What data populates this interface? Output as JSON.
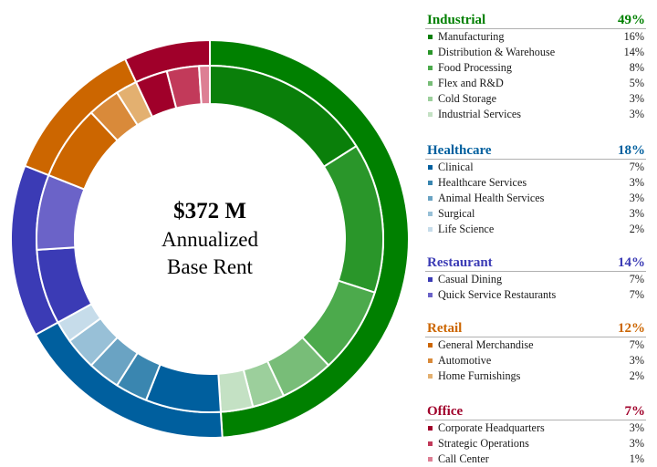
{
  "chart_data": {
    "type": "donut",
    "center": {
      "amount": "$372 M",
      "line1": "Annualized",
      "line2": "Base Rent"
    },
    "groups": [
      {
        "name": "Industrial",
        "pct_label": "49%",
        "value": 49,
        "color": "#008000",
        "items": [
          {
            "name": "Manufacturing",
            "pct_label": "16%",
            "value": 16,
            "color": "#0a7f0a"
          },
          {
            "name": "Distribution & Warehouse",
            "pct_label": "14%",
            "value": 14,
            "color": "#2a962a"
          },
          {
            "name": "Food Processing",
            "pct_label": "8%",
            "value": 8,
            "color": "#4caa4c"
          },
          {
            "name": "Flex and R&D",
            "pct_label": "5%",
            "value": 5,
            "color": "#78bd78"
          },
          {
            "name": "Cold Storage",
            "pct_label": "3%",
            "value": 3,
            "color": "#9ccf9c"
          },
          {
            "name": "Industrial Services",
            "pct_label": "3%",
            "value": 3,
            "color": "#c4e1c4"
          }
        ]
      },
      {
        "name": "Healthcare",
        "pct_label": "18%",
        "value": 18,
        "color": "#005f9e",
        "items": [
          {
            "name": "Clinical",
            "pct_label": "7%",
            "value": 7,
            "color": "#005f9e"
          },
          {
            "name": "Healthcare Services",
            "pct_label": "3%",
            "value": 3,
            "color": "#3a86b0"
          },
          {
            "name": "Animal Health Services",
            "pct_label": "3%",
            "value": 3,
            "color": "#6aa3c3"
          },
          {
            "name": "Surgical",
            "pct_label": "3%",
            "value": 3,
            "color": "#98c0d7"
          },
          {
            "name": "Life Science",
            "pct_label": "2%",
            "value": 2,
            "color": "#c6dcea"
          }
        ]
      },
      {
        "name": "Restaurant",
        "pct_label": "14%",
        "value": 14,
        "color": "#3b3bb5",
        "items": [
          {
            "name": "Casual Dining",
            "pct_label": "7%",
            "value": 7,
            "color": "#3b3bb5"
          },
          {
            "name": "Quick Service Restaurants",
            "pct_label": "7%",
            "value": 7,
            "color": "#6b63c8"
          }
        ]
      },
      {
        "name": "Retail",
        "pct_label": "12%",
        "value": 12,
        "color": "#cc6600",
        "items": [
          {
            "name": "General Merchandise",
            "pct_label": "7%",
            "value": 7,
            "color": "#cc6600"
          },
          {
            "name": "Automotive",
            "pct_label": "3%",
            "value": 3,
            "color": "#d98a3a"
          },
          {
            "name": "Home Furnishings",
            "pct_label": "2%",
            "value": 2,
            "color": "#e3b070"
          }
        ]
      },
      {
        "name": "Office",
        "pct_label": "7%",
        "value": 7,
        "color": "#a0002a",
        "items": [
          {
            "name": "Corporate Headquarters",
            "pct_label": "3%",
            "value": 3,
            "color": "#a0002a"
          },
          {
            "name": "Strategic Operations",
            "pct_label": "3%",
            "value": 3,
            "color": "#c23a5a"
          },
          {
            "name": "Call Center",
            "pct_label": "1%",
            "value": 1,
            "color": "#dd7f94"
          }
        ]
      }
    ]
  }
}
